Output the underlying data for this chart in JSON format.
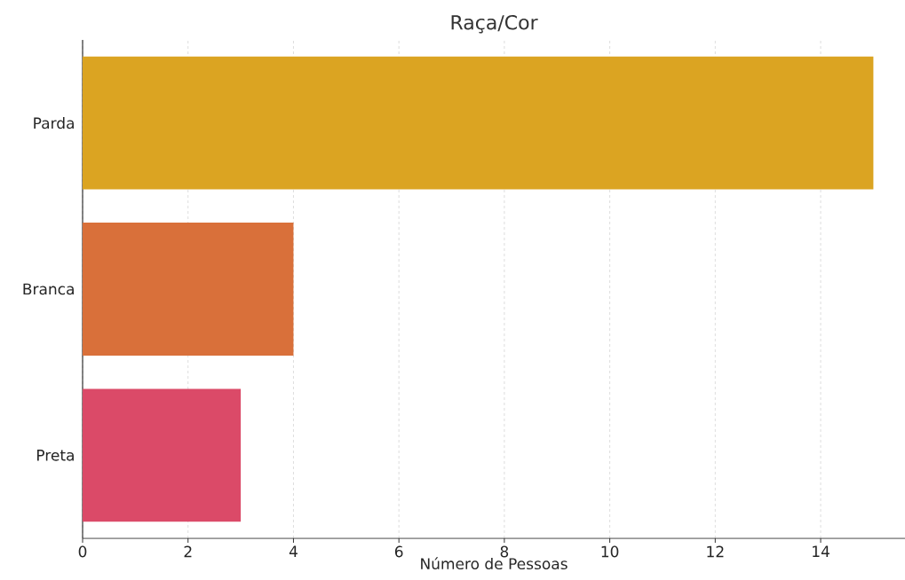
{
  "chart_data": {
    "type": "bar",
    "orientation": "horizontal",
    "title": "Raça/Cor",
    "xlabel": "Número de Pessoas",
    "categories": [
      "Parda",
      "Branca",
      "Preta"
    ],
    "values": [
      15,
      4,
      3
    ],
    "colors": [
      "#dba422",
      "#d9703a",
      "#db4a68"
    ],
    "xlim": [
      0,
      15.6
    ],
    "xticks": [
      0,
      2,
      4,
      6,
      8,
      10,
      12,
      14
    ],
    "grid": "x"
  }
}
